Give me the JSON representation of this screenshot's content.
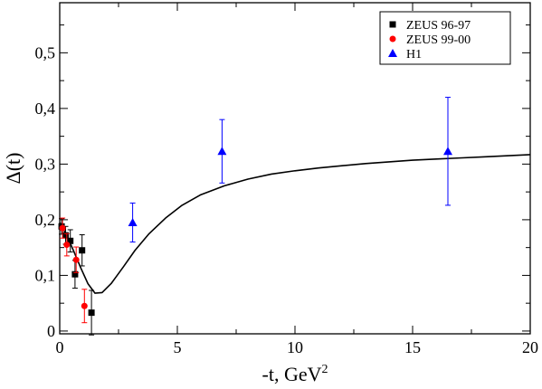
{
  "chart_data": {
    "type": "scatter",
    "xlabel": "-t, GeV",
    "xlabel_sup": "2",
    "ylabel": "Δ(t)",
    "xlim": [
      0,
      20
    ],
    "ylim": [
      -0.005,
      0.59
    ],
    "x_ticks": [
      0,
      5,
      10,
      15,
      20
    ],
    "x_tick_labels": [
      "0",
      "5",
      "10",
      "15",
      "20"
    ],
    "y_ticks": [
      0,
      0.1,
      0.2,
      0.3,
      0.4,
      0.5
    ],
    "y_tick_labels": [
      "0",
      "0,1",
      "0,2",
      "0,3",
      "0,4",
      "0,5"
    ],
    "grid": false,
    "legend_position": "top-right",
    "series": [
      {
        "name": "ZEUS 96-97",
        "marker": "square",
        "color": "#000000",
        "points": [
          {
            "x": 0.08,
            "y": 0.188,
            "err": 0.014
          },
          {
            "x": 0.25,
            "y": 0.172,
            "err": 0.016
          },
          {
            "x": 0.45,
            "y": 0.162,
            "err": 0.02
          },
          {
            "x": 0.65,
            "y": 0.102,
            "err": 0.025
          },
          {
            "x": 0.95,
            "y": 0.145,
            "err": 0.028
          },
          {
            "x": 1.35,
            "y": 0.033,
            "err": 0.04
          }
        ]
      },
      {
        "name": "ZEUS 99-00",
        "marker": "circle",
        "color": "#ff0000",
        "points": [
          {
            "x": 0.12,
            "y": 0.185,
            "err": 0.018
          },
          {
            "x": 0.3,
            "y": 0.155,
            "err": 0.02
          },
          {
            "x": 0.7,
            "y": 0.128,
            "err": 0.023
          },
          {
            "x": 1.05,
            "y": 0.045,
            "err": 0.03
          }
        ]
      },
      {
        "name": "H1",
        "marker": "triangle",
        "color": "#0000ff",
        "points": [
          {
            "x": 3.1,
            "y": 0.195,
            "err": 0.035
          },
          {
            "x": 6.9,
            "y": 0.323,
            "err": 0.057
          },
          {
            "x": 16.5,
            "y": 0.323,
            "err": 0.097
          }
        ]
      }
    ],
    "curve": {
      "color": "#000000",
      "points": [
        [
          0,
          0.195
        ],
        [
          0.3,
          0.172
        ],
        [
          0.6,
          0.143
        ],
        [
          0.9,
          0.113
        ],
        [
          1.2,
          0.085
        ],
        [
          1.5,
          0.068
        ],
        [
          1.8,
          0.069
        ],
        [
          2.2,
          0.086
        ],
        [
          2.7,
          0.115
        ],
        [
          3.2,
          0.145
        ],
        [
          3.8,
          0.175
        ],
        [
          4.5,
          0.203
        ],
        [
          5.2,
          0.226
        ],
        [
          6,
          0.245
        ],
        [
          7,
          0.261
        ],
        [
          8,
          0.273
        ],
        [
          9,
          0.282
        ],
        [
          10,
          0.288
        ],
        [
          11,
          0.293
        ],
        [
          12,
          0.297
        ],
        [
          13,
          0.301
        ],
        [
          14,
          0.304
        ],
        [
          15,
          0.307
        ],
        [
          16,
          0.309
        ],
        [
          17,
          0.311
        ],
        [
          18,
          0.313
        ],
        [
          19,
          0.315
        ],
        [
          20,
          0.317
        ]
      ]
    }
  }
}
